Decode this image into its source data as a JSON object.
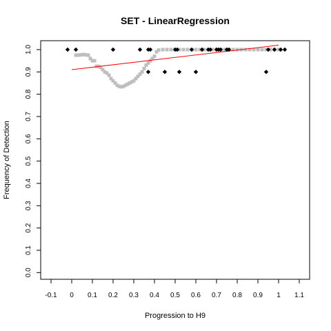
{
  "chart_data": {
    "type": "scatter",
    "title": "SET - LinearRegression",
    "xlabel": "Progression to H9",
    "ylabel": "Frequency of Detection",
    "xlim": [
      -0.15,
      1.15
    ],
    "ylim": [
      -0.03,
      1.04
    ],
    "xticks": [
      "-0.1",
      "0",
      "0.1",
      "0.2",
      "0.3",
      "0.4",
      "0.5",
      "0.6",
      "0.7",
      "0.8",
      "0.9",
      "1",
      "1.1"
    ],
    "yticks": [
      "0.0",
      "0.1",
      "0.2",
      "0.3",
      "0.4",
      "0.5",
      "0.6",
      "0.7",
      "0.8",
      "0.9",
      "1.0"
    ],
    "grid": false,
    "series": [
      {
        "kind": "smoothed",
        "color": "#bebebe",
        "points": [
          [
            0.02,
            0.975
          ],
          [
            0.03,
            0.975
          ],
          [
            0.04,
            0.976
          ],
          [
            0.05,
            0.977
          ],
          [
            0.06,
            0.978
          ],
          [
            0.07,
            0.976
          ],
          [
            0.08,
            0.975
          ],
          [
            0.09,
            0.96
          ],
          [
            0.1,
            0.95
          ],
          [
            0.11,
            0.95
          ],
          [
            0.12,
            0.925
          ],
          [
            0.13,
            0.925
          ],
          [
            0.14,
            0.92
          ],
          [
            0.15,
            0.91
          ],
          [
            0.16,
            0.9
          ],
          [
            0.17,
            0.895
          ],
          [
            0.18,
            0.885
          ],
          [
            0.19,
            0.87
          ],
          [
            0.2,
            0.86
          ],
          [
            0.21,
            0.85
          ],
          [
            0.22,
            0.84
          ],
          [
            0.23,
            0.835
          ],
          [
            0.24,
            0.833
          ],
          [
            0.25,
            0.835
          ],
          [
            0.26,
            0.84
          ],
          [
            0.27,
            0.845
          ],
          [
            0.28,
            0.85
          ],
          [
            0.29,
            0.855
          ],
          [
            0.3,
            0.86
          ],
          [
            0.31,
            0.87
          ],
          [
            0.32,
            0.88
          ],
          [
            0.33,
            0.89
          ],
          [
            0.34,
            0.9
          ],
          [
            0.35,
            0.915
          ],
          [
            0.36,
            0.93
          ],
          [
            0.37,
            0.94
          ],
          [
            0.38,
            0.95
          ],
          [
            0.39,
            0.96
          ],
          [
            0.4,
            0.97
          ],
          [
            0.41,
            0.99
          ],
          [
            0.42,
            0.998
          ],
          [
            0.44,
            1.0
          ],
          [
            0.46,
            1.0
          ],
          [
            0.48,
            1.0
          ],
          [
            0.5,
            1.0
          ],
          [
            0.52,
            1.0
          ],
          [
            0.54,
            1.0
          ],
          [
            0.56,
            1.0
          ],
          [
            0.58,
            1.0
          ],
          [
            0.6,
            1.0
          ],
          [
            0.62,
            1.0
          ],
          [
            0.64,
            1.0
          ],
          [
            0.66,
            1.0
          ],
          [
            0.68,
            1.0
          ],
          [
            0.7,
            1.0
          ],
          [
            0.72,
            1.0
          ],
          [
            0.74,
            1.0
          ],
          [
            0.76,
            1.0
          ],
          [
            0.78,
            1.0
          ],
          [
            0.8,
            1.0
          ],
          [
            0.82,
            1.0
          ],
          [
            0.84,
            1.0
          ],
          [
            0.86,
            1.0
          ],
          [
            0.88,
            1.0
          ],
          [
            0.9,
            1.0
          ],
          [
            0.92,
            1.0
          ],
          [
            0.94,
            1.0
          ],
          [
            0.96,
            1.0
          ],
          [
            0.98,
            1.0
          ],
          [
            1.0,
            1.0
          ]
        ]
      },
      {
        "kind": "observed",
        "color": "#000000",
        "points": [
          [
            -0.02,
            1.0
          ],
          [
            0.02,
            1.0
          ],
          [
            0.2,
            1.0
          ],
          [
            0.33,
            1.0
          ],
          [
            0.37,
            1.0
          ],
          [
            0.38,
            1.0
          ],
          [
            0.37,
            0.9
          ],
          [
            0.45,
            0.9
          ],
          [
            0.5,
            1.0
          ],
          [
            0.51,
            1.0
          ],
          [
            0.52,
            0.9
          ],
          [
            0.58,
            1.0
          ],
          [
            0.6,
            0.9
          ],
          [
            0.63,
            1.0
          ],
          [
            0.66,
            1.0
          ],
          [
            0.67,
            1.0
          ],
          [
            0.7,
            1.0
          ],
          [
            0.71,
            1.0
          ],
          [
            0.72,
            1.0
          ],
          [
            0.75,
            1.0
          ],
          [
            0.76,
            1.0
          ],
          [
            0.94,
            0.9
          ],
          [
            0.95,
            1.0
          ],
          [
            0.98,
            1.0
          ],
          [
            1.01,
            1.0
          ],
          [
            1.03,
            1.0
          ]
        ]
      }
    ],
    "regression_line": {
      "color": "#ff0000",
      "x": [
        0.0,
        1.0
      ],
      "y": [
        0.91,
        1.02
      ]
    }
  }
}
